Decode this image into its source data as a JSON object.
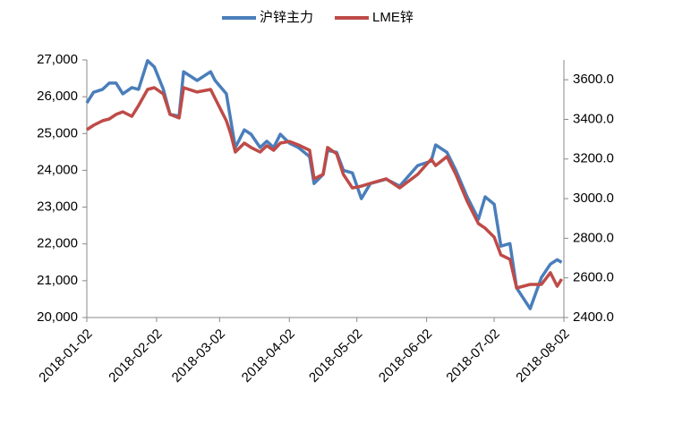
{
  "chart_data": {
    "type": "line",
    "x": [
      "2018-01-02",
      "2018-01-05",
      "2018-01-09",
      "2018-01-12",
      "2018-01-15",
      "2018-01-18",
      "2018-01-22",
      "2018-01-25",
      "2018-01-29",
      "2018-02-01",
      "2018-02-05",
      "2018-02-08",
      "2018-02-12",
      "2018-02-14",
      "2018-02-20",
      "2018-02-26",
      "2018-02-28",
      "2018-03-05",
      "2018-03-07",
      "2018-03-09",
      "2018-03-13",
      "2018-03-16",
      "2018-03-20",
      "2018-03-23",
      "2018-03-26",
      "2018-03-29",
      "2018-04-02",
      "2018-04-06",
      "2018-04-11",
      "2018-04-13",
      "2018-04-17",
      "2018-04-19",
      "2018-04-23",
      "2018-04-26",
      "2018-04-30",
      "2018-05-04",
      "2018-05-08",
      "2018-05-15",
      "2018-05-21",
      "2018-05-29",
      "2018-06-04",
      "2018-06-06",
      "2018-06-11",
      "2018-06-15",
      "2018-06-20",
      "2018-06-25",
      "2018-06-28",
      "2018-07-02",
      "2018-07-05",
      "2018-07-09",
      "2018-07-12",
      "2018-07-18",
      "2018-07-23",
      "2018-07-27",
      "2018-07-30",
      "2018-08-01"
    ],
    "series": [
      {
        "name": "沪锌主力",
        "color": "#4a7ebb",
        "values": [
          25830,
          26120,
          26200,
          26370,
          26370,
          26080,
          26250,
          26200,
          26980,
          26810,
          26200,
          25520,
          25470,
          26680,
          26440,
          26680,
          26440,
          26080,
          25350,
          24620,
          25100,
          24980,
          24620,
          24790,
          24620,
          24980,
          24740,
          24620,
          24370,
          23640,
          23890,
          24540,
          24490,
          24000,
          23930,
          23230,
          23640,
          23760,
          23570,
          24130,
          24250,
          24690,
          24490,
          24000,
          23280,
          22670,
          23280,
          23080,
          21940,
          22010,
          20800,
          20240,
          21090,
          21450,
          21570,
          21500
        ]
      },
      {
        "name": "LME锌",
        "color": "#be4b48",
        "axis": "y2",
        "values": [
          3348,
          3370,
          3393,
          3402,
          3425,
          3438,
          3415,
          3470,
          3551,
          3560,
          3528,
          3425,
          3407,
          3560,
          3538,
          3551,
          3506,
          3393,
          3325,
          3235,
          3280,
          3258,
          3235,
          3267,
          3244,
          3280,
          3289,
          3271,
          3244,
          3100,
          3122,
          3258,
          3226,
          3122,
          3054,
          3063,
          3077,
          3100,
          3054,
          3122,
          3199,
          3167,
          3212,
          3122,
          2987,
          2874,
          2851,
          2806,
          2716,
          2694,
          2549,
          2567,
          2567,
          2626,
          2558,
          2594
        ]
      }
    ],
    "xlim": [
      "2018-01-02",
      "2018-08-02"
    ],
    "xticks": [
      "2018-01-02",
      "2018-02-02",
      "2018-03-02",
      "2018-04-02",
      "2018-05-02",
      "2018-06-02",
      "2018-07-02",
      "2018-08-02"
    ],
    "ylim": [
      20000,
      27000
    ],
    "yticks": [
      {
        "value": 20000,
        "label": "20,000"
      },
      {
        "value": 21000,
        "label": "21,000"
      },
      {
        "value": 22000,
        "label": "22,000"
      },
      {
        "value": 23000,
        "label": "23,000"
      },
      {
        "value": 24000,
        "label": "24,000"
      },
      {
        "value": 25000,
        "label": "25,000"
      },
      {
        "value": 26000,
        "label": "26,000"
      },
      {
        "value": 27000,
        "label": "27,000"
      }
    ],
    "y2lim": [
      2400,
      3700
    ],
    "y2ticks": [
      {
        "value": 2400,
        "label": "2400.0"
      },
      {
        "value": 2600,
        "label": "2600.0"
      },
      {
        "value": 2800,
        "label": "2800.0"
      },
      {
        "value": 3000,
        "label": "3000.0"
      },
      {
        "value": 3200,
        "label": "3200.0"
      },
      {
        "value": 3400,
        "label": "3400.0"
      },
      {
        "value": 3600,
        "label": "3600.0"
      }
    ],
    "legend": "top"
  }
}
